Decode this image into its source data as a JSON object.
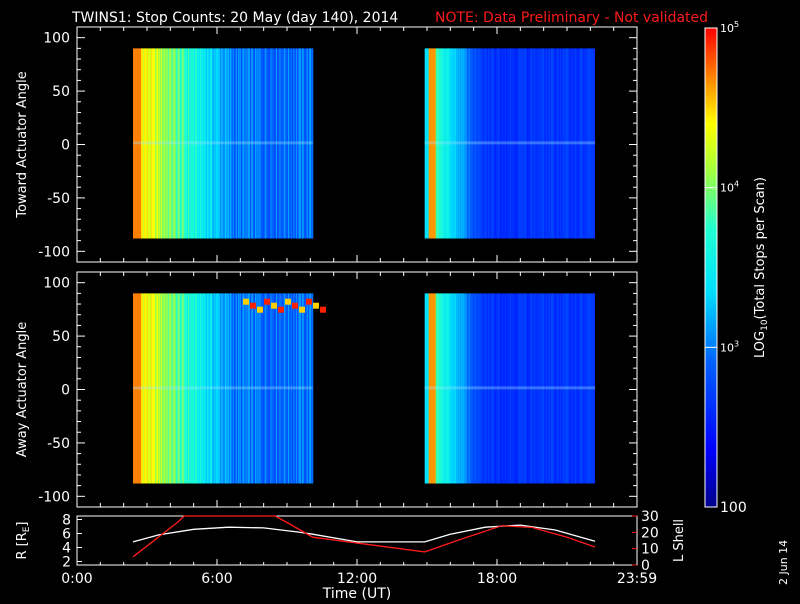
{
  "title": "TWINS1: Stop Counts: 20 May (day 140), 2014",
  "note": "NOTE: Data Preliminary - Not validated",
  "stamp": "2 Jun 14",
  "chart_data": [
    {
      "type": "heatmap",
      "ylabel": "Toward Actuator Angle",
      "ylim": [
        -110,
        110
      ],
      "yticks": [
        "100",
        "50",
        "0",
        "-50",
        "-100"
      ],
      "xlim": [
        0,
        24
      ],
      "data_blocks": [
        {
          "start_hour": 2.4,
          "end_hour": 10.1
        },
        {
          "start_hour": 14.9,
          "end_hour": 22.2
        }
      ],
      "y_data_range": [
        -88,
        90
      ]
    },
    {
      "type": "heatmap",
      "ylabel": "Away Actuator Angle",
      "ylim": [
        -110,
        110
      ],
      "yticks": [
        "100",
        "50",
        "0",
        "-50",
        "-100"
      ],
      "xlim": [
        0,
        24
      ],
      "data_blocks": [
        {
          "start_hour": 2.4,
          "end_hour": 10.1
        },
        {
          "start_hour": 14.9,
          "end_hour": 22.2
        }
      ],
      "y_data_range": [
        -88,
        90
      ]
    },
    {
      "type": "line",
      "xlabel": "Time (UT)",
      "xticks": [
        "0:00",
        "6:00",
        "12:00",
        "18:00",
        "23:59"
      ],
      "xlim": [
        0,
        24
      ],
      "left_axis": {
        "label_parts": [
          "R [R",
          "E",
          "]"
        ],
        "ticks": [
          "8",
          "6",
          "4",
          "2"
        ],
        "ylim": [
          1.5,
          8.5
        ]
      },
      "right_axis": {
        "label": "L Shell",
        "ticks": [
          "30",
          "20",
          "10",
          "0"
        ],
        "ylim": [
          0,
          30
        ],
        "color": "#ff1a1a"
      },
      "series": [
        {
          "axis": "left",
          "color": "#ffffff",
          "x": [
            2.4,
            3.5,
            5,
            6.5,
            8,
            9.5,
            10.1,
            12,
            14.9,
            16,
            17.5,
            19,
            20.5,
            22.2
          ],
          "y": [
            4.8,
            5.8,
            6.6,
            6.9,
            6.8,
            6.2,
            5.9,
            4.8,
            4.8,
            5.9,
            6.9,
            7.2,
            6.5,
            4.9
          ]
        },
        {
          "axis": "right",
          "color": "#ff1a1a",
          "x": [
            2.4,
            4.3,
            4.6,
            8.5,
            9.0,
            10.1,
            14.9,
            16.5,
            18.2,
            19.5,
            21,
            22.2
          ],
          "y": [
            5,
            26,
            32,
            32,
            26,
            17,
            8,
            16,
            24,
            23,
            17,
            11
          ]
        }
      ]
    },
    {
      "type": "heatmap",
      "orientation": "colorbar",
      "scale": "log",
      "zlim": [
        100,
        100000
      ],
      "label_parts": [
        "LOG",
        "10",
        "(Total Stops per Scan)"
      ],
      "ticks": [
        {
          "value": 100000,
          "base": "10",
          "exp": "5"
        },
        {
          "value": 10000,
          "base": "10",
          "exp": "4"
        },
        {
          "value": 1000,
          "base": "10",
          "exp": "3"
        },
        {
          "value": 100,
          "label": "100"
        }
      ]
    }
  ]
}
